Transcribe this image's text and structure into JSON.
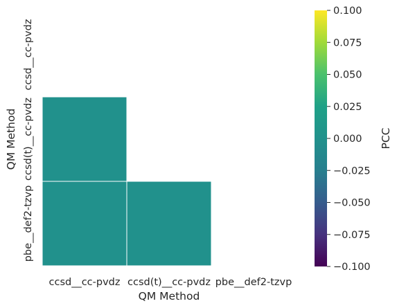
{
  "chart_data": {
    "type": "heatmap",
    "title": "",
    "xlabel": "QM Method",
    "ylabel": "QM Method",
    "x_categories": [
      "ccsd__cc-pvdz",
      "ccsd(t)__cc-pvdz",
      "pbe__def2-tzvp"
    ],
    "y_categories": [
      "ccsd__cc-pvdz",
      "ccsd(t)__cc-pvdz",
      "pbe__def2-tzvp"
    ],
    "mask": "upper triangle including diagonal",
    "cells": [
      {
        "row": "ccsd(t)__cc-pvdz",
        "col": "ccsd__cc-pvdz",
        "value": 0.0
      },
      {
        "row": "pbe__def2-tzvp",
        "col": "ccsd__cc-pvdz",
        "value": 0.0
      },
      {
        "row": "pbe__def2-tzvp",
        "col": "ccsd(t)__cc-pvdz",
        "value": 0.0
      }
    ],
    "colorbar": {
      "label": "PCC",
      "colormap": "viridis",
      "range": [
        -0.1,
        0.1
      ],
      "ticks": [
        0.1,
        0.075,
        0.05,
        0.025,
        0.0,
        -0.025,
        -0.05,
        -0.075,
        -0.1
      ],
      "tick_labels": [
        "0.100",
        "0.075",
        "0.050",
        "0.025",
        "0.000",
        "−0.025",
        "−0.050",
        "−0.075",
        "−0.100"
      ]
    }
  }
}
